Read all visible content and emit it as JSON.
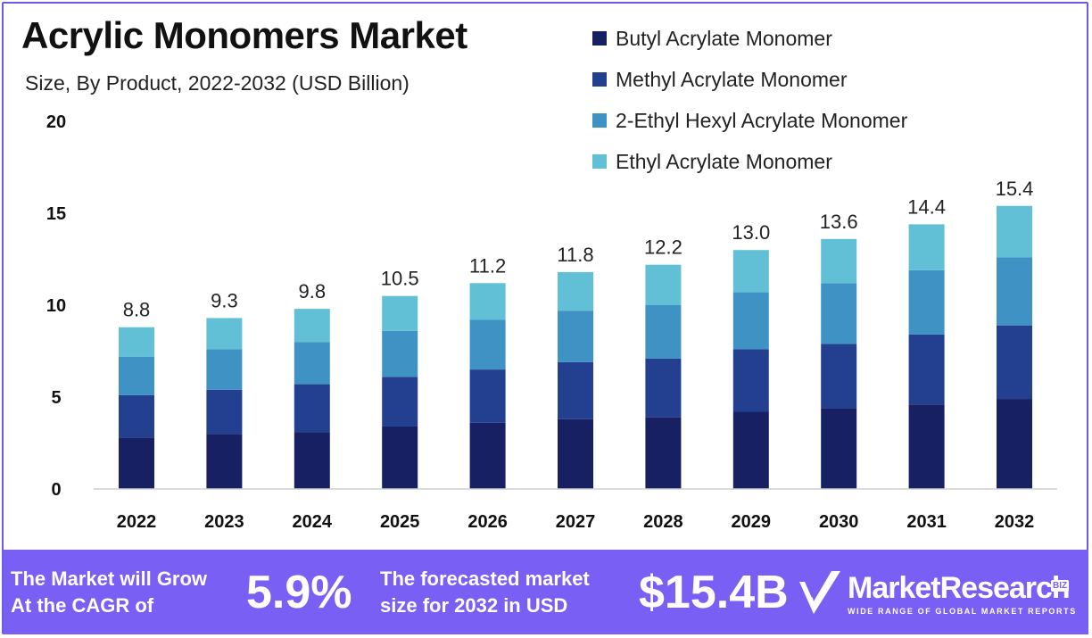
{
  "header": {
    "title": "Acrylic Monomers Market",
    "subtitle": "Size, By Product, 2022-2032 (USD Billion)"
  },
  "colors": {
    "accent": "#7a5ff5",
    "series": [
      "#172063",
      "#22408f",
      "#3f92c4",
      "#62c0d6"
    ]
  },
  "chart_data": {
    "type": "bar",
    "stacked": true,
    "title": "Acrylic Monomers Market",
    "subtitle": "Size, By Product, 2022-2032 (USD Billion)",
    "xlabel": "",
    "ylabel": "",
    "ylim": [
      0,
      20
    ],
    "yticks": [
      0,
      5,
      10,
      15,
      20
    ],
    "grid": false,
    "legend_position": "top-right",
    "categories": [
      "2022",
      "2023",
      "2024",
      "2025",
      "2026",
      "2027",
      "2028",
      "2029",
      "2030",
      "2031",
      "2032"
    ],
    "series": [
      {
        "name": "Butyl Acrylate Monomer",
        "values": [
          2.8,
          3.0,
          3.1,
          3.4,
          3.6,
          3.8,
          3.9,
          4.2,
          4.4,
          4.6,
          4.9
        ]
      },
      {
        "name": "Methyl Acrylate Monomer",
        "values": [
          2.3,
          2.4,
          2.6,
          2.7,
          2.9,
          3.1,
          3.2,
          3.4,
          3.5,
          3.8,
          4.0
        ]
      },
      {
        "name": "2-Ethyl Hexyl Acrylate Monomer",
        "values": [
          2.1,
          2.2,
          2.3,
          2.5,
          2.7,
          2.8,
          2.9,
          3.1,
          3.3,
          3.5,
          3.7
        ]
      },
      {
        "name": "Ethyl Acrylate Monomer",
        "values": [
          1.6,
          1.7,
          1.8,
          1.9,
          2.0,
          2.1,
          2.2,
          2.3,
          2.4,
          2.5,
          2.8
        ]
      }
    ],
    "totals": [
      "8.8",
      "9.3",
      "9.8",
      "10.5",
      "11.2",
      "11.8",
      "12.2",
      "13.0",
      "13.6",
      "14.4",
      "15.4"
    ]
  },
  "footer": {
    "cagr_text_line1": "The Market will Grow",
    "cagr_text_line2": "At the CAGR of",
    "cagr_value": "5.9%",
    "forecast_text_line1": "The forecasted market",
    "forecast_text_line2": "size for 2032 in USD",
    "forecast_value": "$15.4B",
    "brand_name": "MarketResearch",
    "brand_suffix": "BIZ",
    "brand_tagline": "WIDE RANGE OF GLOBAL MARKET REPORTS"
  }
}
